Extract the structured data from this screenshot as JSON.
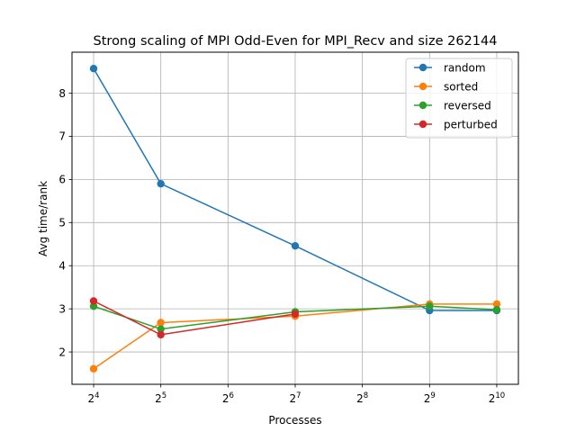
{
  "chart_data": {
    "type": "line",
    "title": "Strong scaling of MPI Odd-Even for MPI_Recv and size 262144",
    "xlabel": "Processes",
    "ylabel": "Avg time/rank",
    "x_scale": "log2",
    "x_ticks": [
      {
        "value": 16,
        "base": "2",
        "exp": "4"
      },
      {
        "value": 32,
        "base": "2",
        "exp": "5"
      },
      {
        "value": 64,
        "base": "2",
        "exp": "6"
      },
      {
        "value": 128,
        "base": "2",
        "exp": "7"
      },
      {
        "value": 256,
        "base": "2",
        "exp": "8"
      },
      {
        "value": 512,
        "base": "2",
        "exp": "9"
      },
      {
        "value": 1024,
        "base": "2",
        "exp": "10"
      }
    ],
    "y_ticks": [
      2,
      3,
      4,
      5,
      6,
      7,
      8
    ],
    "xlim": [
      12.8,
      1280
    ],
    "ylim": [
      1.25,
      8.95
    ],
    "grid": true,
    "legend_position": "top-right",
    "x": [
      16,
      32,
      128,
      512,
      1024
    ],
    "series": [
      {
        "name": "random",
        "color": "#1f77b4",
        "values": [
          8.57,
          5.9,
          4.46,
          2.96,
          2.96
        ]
      },
      {
        "name": "sorted",
        "color": "#ff7f0e",
        "values": [
          1.61,
          2.68,
          2.83,
          3.11,
          3.11
        ]
      },
      {
        "name": "reversed",
        "color": "#2ca02c",
        "values": [
          3.06,
          2.53,
          2.93,
          3.06,
          2.98
        ]
      },
      {
        "name": "perturbed",
        "color": "#d62728",
        "values": [
          3.18,
          2.4,
          2.88,
          null,
          null
        ]
      }
    ]
  }
}
